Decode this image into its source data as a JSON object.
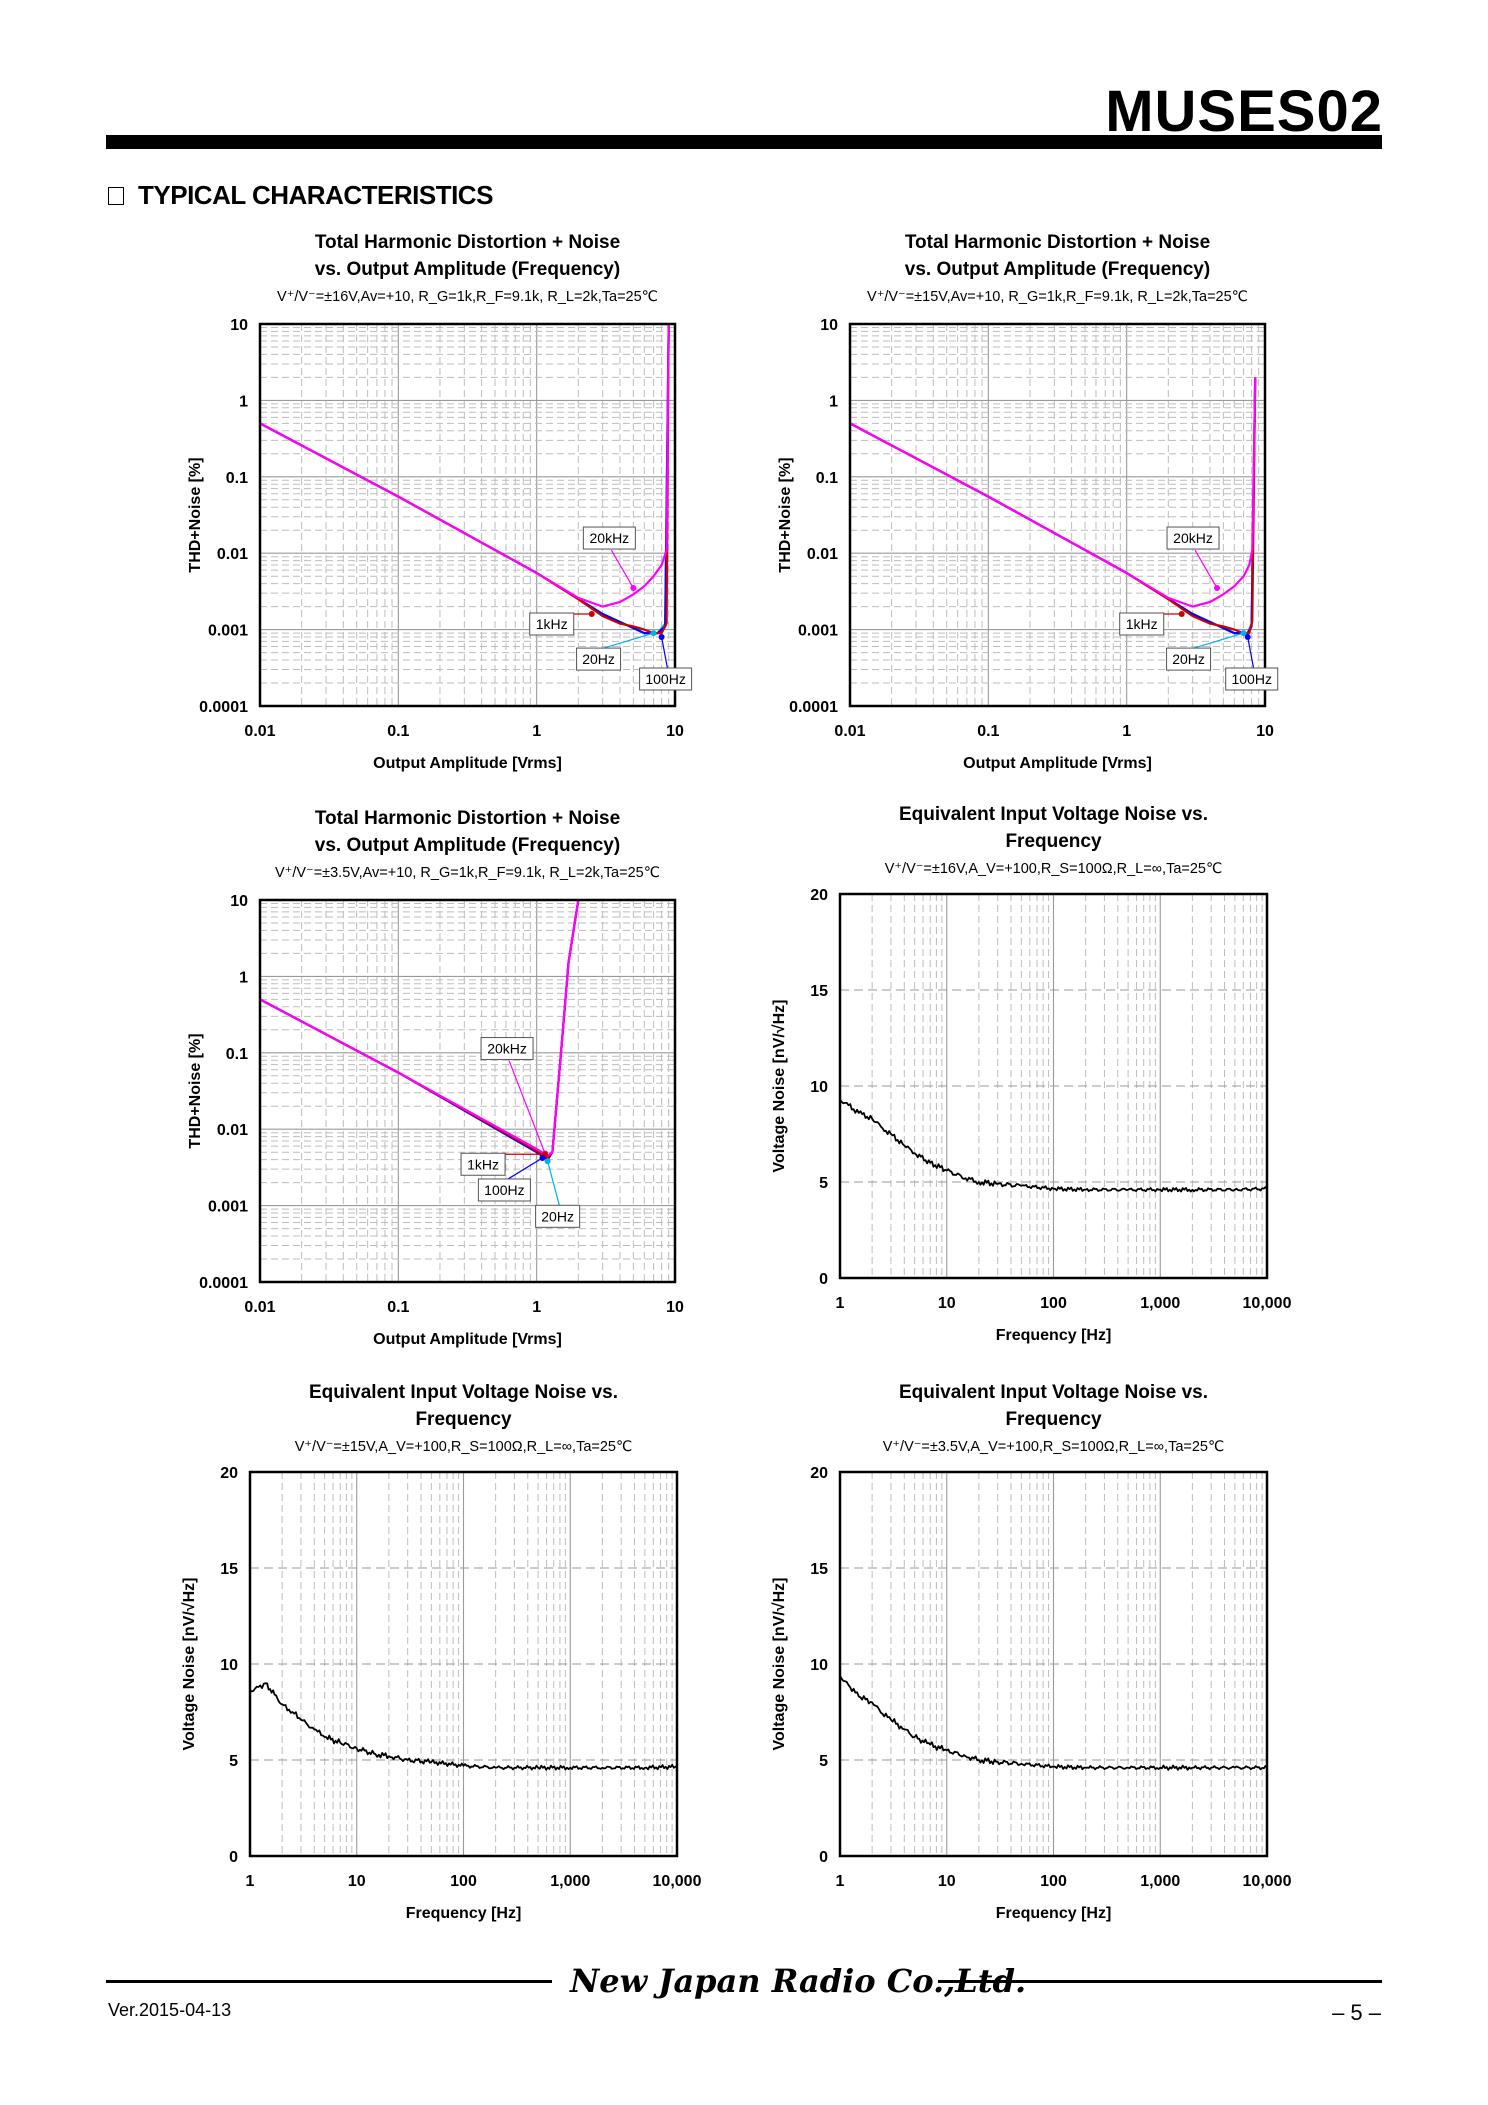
{
  "header": {
    "part_number": "MUSES02"
  },
  "section": {
    "heading": "TYPICAL CHARACTERISTICS"
  },
  "footer": {
    "company": "New Japan Radio Co.,Ltd.",
    "version": "Ver.2015-04-13",
    "page": "– 5 –"
  },
  "colors": {
    "freq_20hz": "#00b0f0",
    "freq_100hz": "#0000ff",
    "freq_1khz": "#cc0000",
    "freq_20khz": "#ff00ff",
    "noise": "#000000"
  },
  "chart_data": [
    {
      "type": "line",
      "title_line1": "Total Harmonic Distortion + Noise",
      "title_line2": "vs. Output Amplitude (Frequency)",
      "condition": "V⁺/V⁻=±16V,Av=+10, R_G=1k,R_F=9.1k, R_L=2k,Ta=25℃",
      "xlabel": "Output Amplitude [Vrms]",
      "ylabel": "THD+Noise [%]",
      "xscale": "log",
      "yscale": "log",
      "xlim": [
        0.01,
        10
      ],
      "ylim": [
        0.0001,
        10
      ],
      "xticks": [
        "0.01",
        "0.1",
        "1",
        "10"
      ],
      "yticks": [
        "0.0001",
        "0.001",
        "0.01",
        "0.1",
        "1",
        "10"
      ],
      "series": [
        {
          "name": "20Hz",
          "x": [
            0.01,
            0.1,
            1,
            3,
            6,
            7.5,
            8.5,
            9
          ],
          "y": [
            0.5,
            0.055,
            0.0055,
            0.0016,
            0.0009,
            0.0009,
            0.0012,
            10
          ]
        },
        {
          "name": "100Hz",
          "x": [
            0.01,
            0.1,
            1,
            3,
            6,
            7.5,
            8.5,
            9
          ],
          "y": [
            0.5,
            0.055,
            0.0055,
            0.0016,
            0.0009,
            0.0009,
            0.0011,
            10
          ]
        },
        {
          "name": "1kHz",
          "x": [
            0.01,
            0.1,
            1,
            2,
            3,
            4,
            5,
            6,
            7,
            8,
            8.7,
            9
          ],
          "y": [
            0.5,
            0.055,
            0.0055,
            0.0025,
            0.0015,
            0.0012,
            0.0011,
            0.001,
            0.0009,
            0.0009,
            0.0012,
            10
          ]
        },
        {
          "name": "20kHz",
          "x": [
            0.01,
            0.1,
            1,
            2,
            3,
            4,
            5,
            6,
            7,
            8,
            8.7,
            9
          ],
          "y": [
            0.5,
            0.055,
            0.0055,
            0.0026,
            0.002,
            0.0023,
            0.0029,
            0.0037,
            0.005,
            0.007,
            0.011,
            10
          ]
        }
      ],
      "annotations": [
        {
          "text": "20kHz",
          "x": 5,
          "y": 0.0035
        },
        {
          "text": "1kHz",
          "x": 2.5,
          "y": 0.0016
        },
        {
          "text": "20Hz",
          "x": 7,
          "y": 0.0009
        },
        {
          "text": "100Hz",
          "x": 8,
          "y": 0.0008
        }
      ]
    },
    {
      "type": "line",
      "title_line1": "Total Harmonic Distortion + Noise",
      "title_line2": "vs. Output Amplitude (Frequency)",
      "condition": "V⁺/V⁻=±15V,Av=+10, R_G=1k,R_F=9.1k, R_L=2k,Ta=25℃",
      "xlabel": "Output Amplitude [Vrms]",
      "ylabel": "THD+Noise [%]",
      "xscale": "log",
      "yscale": "log",
      "xlim": [
        0.01,
        10
      ],
      "ylim": [
        0.0001,
        10
      ],
      "xticks": [
        "0.01",
        "0.1",
        "1",
        "10"
      ],
      "yticks": [
        "0.0001",
        "0.001",
        "0.01",
        "0.1",
        "1",
        "10"
      ],
      "series": [
        {
          "name": "20Hz",
          "x": [
            0.01,
            0.1,
            1,
            3,
            6,
            7.5,
            8,
            8.5
          ],
          "y": [
            0.5,
            0.055,
            0.0055,
            0.0016,
            0.0009,
            0.0009,
            0.0012,
            2
          ]
        },
        {
          "name": "100Hz",
          "x": [
            0.01,
            0.1,
            1,
            3,
            6,
            7.5,
            8,
            8.5
          ],
          "y": [
            0.5,
            0.055,
            0.0055,
            0.0016,
            0.0009,
            0.0009,
            0.0011,
            2
          ]
        },
        {
          "name": "1kHz",
          "x": [
            0.01,
            0.1,
            1,
            2,
            3,
            4,
            5,
            6,
            7,
            7.7,
            8.1,
            8.5
          ],
          "y": [
            0.5,
            0.055,
            0.0055,
            0.0025,
            0.0015,
            0.0012,
            0.0011,
            0.001,
            0.0009,
            0.0009,
            0.0013,
            2
          ]
        },
        {
          "name": "20kHz",
          "x": [
            0.01,
            0.1,
            1,
            2,
            3,
            4,
            5,
            6,
            7,
            7.7,
            8.1,
            8.5
          ],
          "y": [
            0.5,
            0.055,
            0.0055,
            0.0026,
            0.002,
            0.0023,
            0.0029,
            0.0037,
            0.005,
            0.007,
            0.011,
            2
          ]
        }
      ],
      "annotations": [
        {
          "text": "20kHz",
          "x": 4.5,
          "y": 0.0035
        },
        {
          "text": "1kHz",
          "x": 2.5,
          "y": 0.0016
        },
        {
          "text": "20Hz",
          "x": 7,
          "y": 0.0009
        },
        {
          "text": "100Hz",
          "x": 7.5,
          "y": 0.0008
        }
      ]
    },
    {
      "type": "line",
      "title_line1": "Total Harmonic Distortion + Noise",
      "title_line2": "vs. Output Amplitude (Frequency)",
      "condition": "V⁺/V⁻=±3.5V,Av=+10, R_G=1k,R_F=9.1k, R_L=2k,Ta=25℃",
      "xlabel": "Output Amplitude [Vrms]",
      "ylabel": "THD+Noise [%]",
      "xscale": "log",
      "yscale": "log",
      "xlim": [
        0.01,
        10
      ],
      "ylim": [
        0.0001,
        10
      ],
      "xticks": [
        "0.01",
        "0.1",
        "1",
        "10"
      ],
      "yticks": [
        "0.0001",
        "0.001",
        "0.01",
        "0.1",
        "1",
        "10"
      ],
      "series": [
        {
          "name": "20Hz",
          "x": [
            0.01,
            0.1,
            1,
            1.2,
            1.3,
            1.5,
            1.7,
            2
          ],
          "y": [
            0.5,
            0.055,
            0.005,
            0.004,
            0.005,
            0.1,
            1.5,
            10
          ]
        },
        {
          "name": "100Hz",
          "x": [
            0.01,
            0.1,
            1,
            1.2,
            1.3,
            1.5,
            1.7,
            2
          ],
          "y": [
            0.5,
            0.055,
            0.005,
            0.004,
            0.005,
            0.1,
            1.5,
            10
          ]
        },
        {
          "name": "1kHz",
          "x": [
            0.01,
            0.1,
            1,
            1.2,
            1.3,
            1.5,
            1.7,
            2
          ],
          "y": [
            0.5,
            0.055,
            0.0052,
            0.0042,
            0.005,
            0.1,
            1.5,
            10
          ]
        },
        {
          "name": "20kHz",
          "x": [
            0.01,
            0.1,
            1,
            1.2,
            1.3,
            1.5,
            1.7,
            2
          ],
          "y": [
            0.5,
            0.055,
            0.0055,
            0.0045,
            0.005,
            0.1,
            1.5,
            10
          ]
        }
      ],
      "annotations": [
        {
          "text": "20kHz",
          "x": 1.15,
          "y": 0.0048
        },
        {
          "text": "1kHz",
          "x": 1.15,
          "y": 0.0047
        },
        {
          "text": "100Hz",
          "x": 1.1,
          "y": 0.0042
        },
        {
          "text": "20Hz",
          "x": 1.2,
          "y": 0.0038
        }
      ]
    },
    {
      "type": "line",
      "title_line1": "Equivalent Input Voltage Noise vs.",
      "title_line2": "Frequency",
      "condition": "V⁺/V⁻=±16V,A_V=+100,R_S=100Ω,R_L=∞,Ta=25℃",
      "xlabel": "Frequency [Hz]",
      "ylabel": "Voltage Noise [nV/√Hz]",
      "xscale": "log",
      "yscale": "linear",
      "xlim": [
        1,
        10000
      ],
      "ylim": [
        0,
        20
      ],
      "xticks": [
        "1",
        "10",
        "100",
        "1,000",
        "10,000"
      ],
      "yticks": [
        "0",
        "5",
        "10",
        "15",
        "20"
      ],
      "series": [
        {
          "name": "noise",
          "x": [
            1,
            1.2,
            1.5,
            2,
            2.5,
            3,
            4,
            5,
            7,
            10,
            15,
            20,
            30,
            50,
            100,
            200,
            500,
            1000,
            2000,
            5000,
            10000
          ],
          "y": [
            9.3,
            9.0,
            8.6,
            8.3,
            7.8,
            7.5,
            6.9,
            6.5,
            6.0,
            5.6,
            5.2,
            5.0,
            4.9,
            4.8,
            4.65,
            4.6,
            4.6,
            4.6,
            4.6,
            4.6,
            4.65
          ]
        }
      ]
    },
    {
      "type": "line",
      "title_line1": "Equivalent Input Voltage Noise vs.",
      "title_line2": "Frequency",
      "condition": "V⁺/V⁻=±15V,A_V=+100,R_S=100Ω,R_L=∞,Ta=25℃",
      "xlabel": "Frequency [Hz]",
      "ylabel": "Voltage Noise [nV/√Hz]",
      "xscale": "log",
      "yscale": "linear",
      "xlim": [
        1,
        10000
      ],
      "ylim": [
        0,
        20
      ],
      "xticks": [
        "1",
        "10",
        "100",
        "1,000",
        "10,000"
      ],
      "yticks": [
        "0",
        "5",
        "10",
        "15",
        "20"
      ],
      "series": [
        {
          "name": "noise",
          "x": [
            1,
            1.2,
            1.4,
            1.7,
            2,
            2.5,
            3,
            4,
            5,
            7,
            10,
            15,
            20,
            30,
            50,
            100,
            200,
            500,
            1000,
            2000,
            5000,
            10000
          ],
          "y": [
            8.6,
            8.8,
            9.0,
            8.4,
            7.9,
            7.5,
            7.1,
            6.6,
            6.2,
            5.9,
            5.6,
            5.3,
            5.2,
            5.0,
            4.9,
            4.7,
            4.6,
            4.6,
            4.6,
            4.6,
            4.6,
            4.65
          ]
        }
      ]
    },
    {
      "type": "line",
      "title_line1": "Equivalent Input Voltage Noise vs.",
      "title_line2": "Frequency",
      "condition": "V⁺/V⁻=±3.5V,A_V=+100,R_S=100Ω,R_L=∞,Ta=25℃",
      "xlabel": "Frequency [Hz]",
      "ylabel": "Voltage Noise [nV/√Hz]",
      "xscale": "log",
      "yscale": "linear",
      "xlim": [
        1,
        10000
      ],
      "ylim": [
        0,
        20
      ],
      "xticks": [
        "1",
        "10",
        "100",
        "1,000",
        "10,000"
      ],
      "yticks": [
        "0",
        "5",
        "10",
        "15",
        "20"
      ],
      "series": [
        {
          "name": "noise",
          "x": [
            1,
            1.2,
            1.5,
            2,
            2.5,
            3,
            4,
            5,
            7,
            10,
            15,
            20,
            30,
            50,
            100,
            200,
            500,
            1000,
            2000,
            5000,
            10000
          ],
          "y": [
            9.4,
            8.9,
            8.3,
            8.0,
            7.4,
            7.1,
            6.6,
            6.2,
            5.8,
            5.5,
            5.2,
            5.0,
            4.9,
            4.8,
            4.65,
            4.6,
            4.6,
            4.6,
            4.6,
            4.6,
            4.6
          ]
        }
      ]
    }
  ]
}
